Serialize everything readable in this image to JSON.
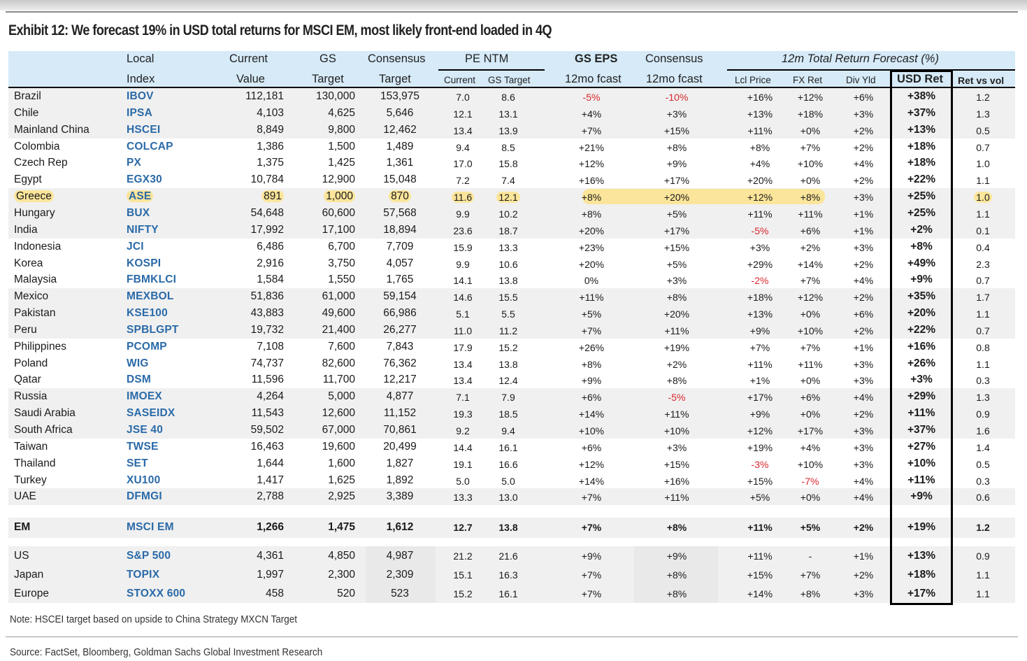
{
  "title": "Exhibit 12: We forecast 19% in USD total returns for MSCI EM, most likely front-end loaded in 4Q",
  "headers": {
    "local_1": "Local",
    "local_2": "Index",
    "current_1": "Current",
    "current_2": "Value",
    "gs_1": "GS",
    "gs_2": "Target",
    "cons_1": "Consensus",
    "cons_2": "Target",
    "pe": "PE NTM",
    "pe_current": "Current",
    "pe_gs": "GS Target",
    "gseps_1": "GS EPS",
    "gseps_2": "12mo fcast",
    "conseps_1": "Consensus",
    "conseps_2": "12mo fcast",
    "trf": "12m Total Return Forecast (%)",
    "lcl": "Lcl Price",
    "fx": "FX Ret",
    "div": "Div Yld",
    "usd": "USD Ret",
    "rvv": "Ret vs vol"
  },
  "rows": [
    {
      "country": "Brazil",
      "index": "IBOV",
      "cur": "112,181",
      "gs": "130,000",
      "cons": "153,975",
      "pec": "7.0",
      "peg": "8.6",
      "gseps": "-5%",
      "conseps": "-10%",
      "lcl": "+16%",
      "fx": "+12%",
      "div": "+6%",
      "usd": "+38%",
      "rvv": "1.2"
    },
    {
      "country": "Chile",
      "index": "IPSA",
      "cur": "4,103",
      "gs": "4,625",
      "cons": "5,646",
      "pec": "12.1",
      "peg": "13.1",
      "gseps": "+4%",
      "conseps": "+3%",
      "lcl": "+13%",
      "fx": "+18%",
      "div": "+3%",
      "usd": "+37%",
      "rvv": "1.3"
    },
    {
      "country": "Mainland China",
      "index": "HSCEI",
      "cur": "8,849",
      "gs": "9,800",
      "cons": "12,462",
      "pec": "13.4",
      "peg": "13.9",
      "gseps": "+7%",
      "conseps": "+15%",
      "lcl": "+11%",
      "fx": "+0%",
      "div": "+2%",
      "usd": "+13%",
      "rvv": "0.5"
    },
    {
      "country": "Colombia",
      "index": "COLCAP",
      "cur": "1,386",
      "gs": "1,500",
      "cons": "1,489",
      "pec": "9.4",
      "peg": "8.5",
      "gseps": "+21%",
      "conseps": "+8%",
      "lcl": "+8%",
      "fx": "+7%",
      "div": "+2%",
      "usd": "+18%",
      "rvv": "0.7"
    },
    {
      "country": "Czech Rep",
      "index": "PX",
      "cur": "1,375",
      "gs": "1,425",
      "cons": "1,361",
      "pec": "17.0",
      "peg": "15.8",
      "gseps": "+12%",
      "conseps": "+9%",
      "lcl": "+4%",
      "fx": "+10%",
      "div": "+4%",
      "usd": "+18%",
      "rvv": "1.0"
    },
    {
      "country": "Egypt",
      "index": "EGX30",
      "cur": "10,784",
      "gs": "12,900",
      "cons": "15,048",
      "pec": "7.2",
      "peg": "7.4",
      "gseps": "+16%",
      "conseps": "+17%",
      "lcl": "+20%",
      "fx": "+0%",
      "div": "+2%",
      "usd": "+22%",
      "rvv": "1.1"
    },
    {
      "country": "Greece",
      "index": "ASE",
      "cur": "891",
      "gs": "1,000",
      "cons": "870",
      "pec": "11.6",
      "peg": "12.1",
      "gseps": "+8%",
      "conseps": "+20%",
      "lcl": "+12%",
      "fx": "+8%",
      "div": "+3%",
      "usd": "+25%",
      "rvv": "1.0"
    },
    {
      "country": "Hungary",
      "index": "BUX",
      "cur": "54,648",
      "gs": "60,600",
      "cons": "57,568",
      "pec": "9.9",
      "peg": "10.2",
      "gseps": "+8%",
      "conseps": "+5%",
      "lcl": "+11%",
      "fx": "+11%",
      "div": "+1%",
      "usd": "+25%",
      "rvv": "1.1"
    },
    {
      "country": "India",
      "index": "NIFTY",
      "cur": "17,992",
      "gs": "17,100",
      "cons": "18,894",
      "pec": "23.6",
      "peg": "18.7",
      "gseps": "+20%",
      "conseps": "+17%",
      "lcl": "-5%",
      "fx": "+6%",
      "div": "+1%",
      "usd": "+2%",
      "rvv": "0.1"
    },
    {
      "country": "Indonesia",
      "index": "JCI",
      "cur": "6,486",
      "gs": "6,700",
      "cons": "7,709",
      "pec": "15.9",
      "peg": "13.3",
      "gseps": "+23%",
      "conseps": "+15%",
      "lcl": "+3%",
      "fx": "+2%",
      "div": "+3%",
      "usd": "+8%",
      "rvv": "0.4"
    },
    {
      "country": "Korea",
      "index": "KOSPI",
      "cur": "2,916",
      "gs": "3,750",
      "cons": "4,057",
      "pec": "9.9",
      "peg": "10.6",
      "gseps": "+20%",
      "conseps": "+5%",
      "lcl": "+29%",
      "fx": "+14%",
      "div": "+2%",
      "usd": "+49%",
      "rvv": "2.3"
    },
    {
      "country": "Malaysia",
      "index": "FBMKLCI",
      "cur": "1,584",
      "gs": "1,550",
      "cons": "1,765",
      "pec": "14.1",
      "peg": "13.8",
      "gseps": "0%",
      "conseps": "+3%",
      "lcl": "-2%",
      "fx": "+7%",
      "div": "+4%",
      "usd": "+9%",
      "rvv": "0.7"
    },
    {
      "country": "Mexico",
      "index": "MEXBOL",
      "cur": "51,836",
      "gs": "61,000",
      "cons": "59,154",
      "pec": "14.6",
      "peg": "15.5",
      "gseps": "+11%",
      "conseps": "+8%",
      "lcl": "+18%",
      "fx": "+12%",
      "div": "+2%",
      "usd": "+35%",
      "rvv": "1.7"
    },
    {
      "country": "Pakistan",
      "index": "KSE100",
      "cur": "43,883",
      "gs": "49,600",
      "cons": "66,986",
      "pec": "5.1",
      "peg": "5.5",
      "gseps": "+5%",
      "conseps": "+20%",
      "lcl": "+13%",
      "fx": "+0%",
      "div": "+6%",
      "usd": "+20%",
      "rvv": "1.1"
    },
    {
      "country": "Peru",
      "index": "SPBLGPT",
      "cur": "19,732",
      "gs": "21,400",
      "cons": "26,277",
      "pec": "11.0",
      "peg": "11.2",
      "gseps": "+7%",
      "conseps": "+11%",
      "lcl": "+9%",
      "fx": "+10%",
      "div": "+2%",
      "usd": "+22%",
      "rvv": "0.7"
    },
    {
      "country": "Philippines",
      "index": "PCOMP",
      "cur": "7,108",
      "gs": "7,600",
      "cons": "7,843",
      "pec": "17.9",
      "peg": "15.2",
      "gseps": "+26%",
      "conseps": "+19%",
      "lcl": "+7%",
      "fx": "+7%",
      "div": "+1%",
      "usd": "+16%",
      "rvv": "0.8"
    },
    {
      "country": "Poland",
      "index": "WIG",
      "cur": "74,737",
      "gs": "82,600",
      "cons": "76,362",
      "pec": "13.4",
      "peg": "13.8",
      "gseps": "+8%",
      "conseps": "+2%",
      "lcl": "+11%",
      "fx": "+11%",
      "div": "+3%",
      "usd": "+26%",
      "rvv": "1.1"
    },
    {
      "country": "Qatar",
      "index": "DSM",
      "cur": "11,596",
      "gs": "11,700",
      "cons": "12,217",
      "pec": "13.4",
      "peg": "12.4",
      "gseps": "+9%",
      "conseps": "+8%",
      "lcl": "+1%",
      "fx": "+0%",
      "div": "+3%",
      "usd": "+3%",
      "rvv": "0.3"
    },
    {
      "country": "Russia",
      "index": "IMOEX",
      "cur": "4,264",
      "gs": "5,000",
      "cons": "4,877",
      "pec": "7.1",
      "peg": "7.9",
      "gseps": "+6%",
      "conseps": "-5%",
      "lcl": "+17%",
      "fx": "+6%",
      "div": "+4%",
      "usd": "+29%",
      "rvv": "1.3"
    },
    {
      "country": "Saudi Arabia",
      "index": "SASEIDX",
      "cur": "11,543",
      "gs": "12,600",
      "cons": "11,152",
      "pec": "19.3",
      "peg": "18.5",
      "gseps": "+14%",
      "conseps": "+11%",
      "lcl": "+9%",
      "fx": "+0%",
      "div": "+2%",
      "usd": "+11%",
      "rvv": "0.9"
    },
    {
      "country": "South Africa",
      "index": "JSE 40",
      "cur": "59,502",
      "gs": "67,000",
      "cons": "70,861",
      "pec": "9.2",
      "peg": "9.4",
      "gseps": "+10%",
      "conseps": "+10%",
      "lcl": "+12%",
      "fx": "+17%",
      "div": "+3%",
      "usd": "+37%",
      "rvv": "1.6"
    },
    {
      "country": "Taiwan",
      "index": "TWSE",
      "cur": "16,463",
      "gs": "19,600",
      "cons": "20,499",
      "pec": "14.4",
      "peg": "16.1",
      "gseps": "+6%",
      "conseps": "+3%",
      "lcl": "+19%",
      "fx": "+4%",
      "div": "+3%",
      "usd": "+27%",
      "rvv": "1.4"
    },
    {
      "country": "Thailand",
      "index": "SET",
      "cur": "1,644",
      "gs": "1,600",
      "cons": "1,827",
      "pec": "19.1",
      "peg": "16.6",
      "gseps": "+12%",
      "conseps": "+15%",
      "lcl": "-3%",
      "fx": "+10%",
      "div": "+3%",
      "usd": "+10%",
      "rvv": "0.5"
    },
    {
      "country": "Turkey",
      "index": "XU100",
      "cur": "1,417",
      "gs": "1,625",
      "cons": "1,892",
      "pec": "5.0",
      "peg": "5.0",
      "gseps": "+14%",
      "conseps": "+16%",
      "lcl": "+15%",
      "fx": "-7%",
      "div": "+4%",
      "usd": "+11%",
      "rvv": "0.3"
    },
    {
      "country": "UAE",
      "index": "DFMGI",
      "cur": "2,788",
      "gs": "2,925",
      "cons": "3,389",
      "pec": "13.3",
      "peg": "13.0",
      "gseps": "+7%",
      "conseps": "+11%",
      "lcl": "+5%",
      "fx": "+0%",
      "div": "+4%",
      "usd": "+9%",
      "rvv": "0.6"
    }
  ],
  "em_row": {
    "country": "EM",
    "index": "MSCI EM",
    "cur": "1,266",
    "gs": "1,475",
    "cons": "1,612",
    "pec": "12.7",
    "peg": "13.8",
    "gseps": "+7%",
    "conseps": "+8%",
    "lcl": "+11%",
    "fx": "+5%",
    "div": "+2%",
    "usd": "+19%",
    "rvv": "1.2"
  },
  "dm_rows": [
    {
      "country": "US",
      "index": "S&P 500",
      "cur": "4,361",
      "gs": "4,850",
      "cons": "4,987",
      "pec": "21.2",
      "peg": "21.6",
      "gseps": "+9%",
      "conseps": "+9%",
      "lcl": "+11%",
      "fx": "-",
      "div": "+1%",
      "usd": "+13%",
      "rvv": "0.9"
    },
    {
      "country": "Japan",
      "index": "TOPIX",
      "cur": "1,997",
      "gs": "2,300",
      "cons": "2,309",
      "pec": "15.1",
      "peg": "16.3",
      "gseps": "+7%",
      "conseps": "+8%",
      "lcl": "+15%",
      "fx": "+7%",
      "div": "+2%",
      "usd": "+18%",
      "rvv": "1.1"
    },
    {
      "country": "Europe",
      "index": "STOXX 600",
      "cur": "458",
      "gs": "520",
      "cons": "523",
      "pec": "15.2",
      "peg": "16.1",
      "gseps": "+7%",
      "conseps": "+8%",
      "lcl": "+14%",
      "fx": "+8%",
      "div": "+3%",
      "usd": "+17%",
      "rvv": "1.1"
    }
  ],
  "highlight_country": "Greece",
  "colors": {
    "header_bg": "#d6eaf8",
    "index_text": "#2a6aa8",
    "negative": "#d9262e",
    "highlight": "#fbe59a",
    "row_gray": "#f0f0f0"
  },
  "note": "Note: HSCEI target based on upside to China Strategy MXCN Target",
  "source": "Source: FactSet, Bloomberg, Goldman Sachs Global Investment Research"
}
